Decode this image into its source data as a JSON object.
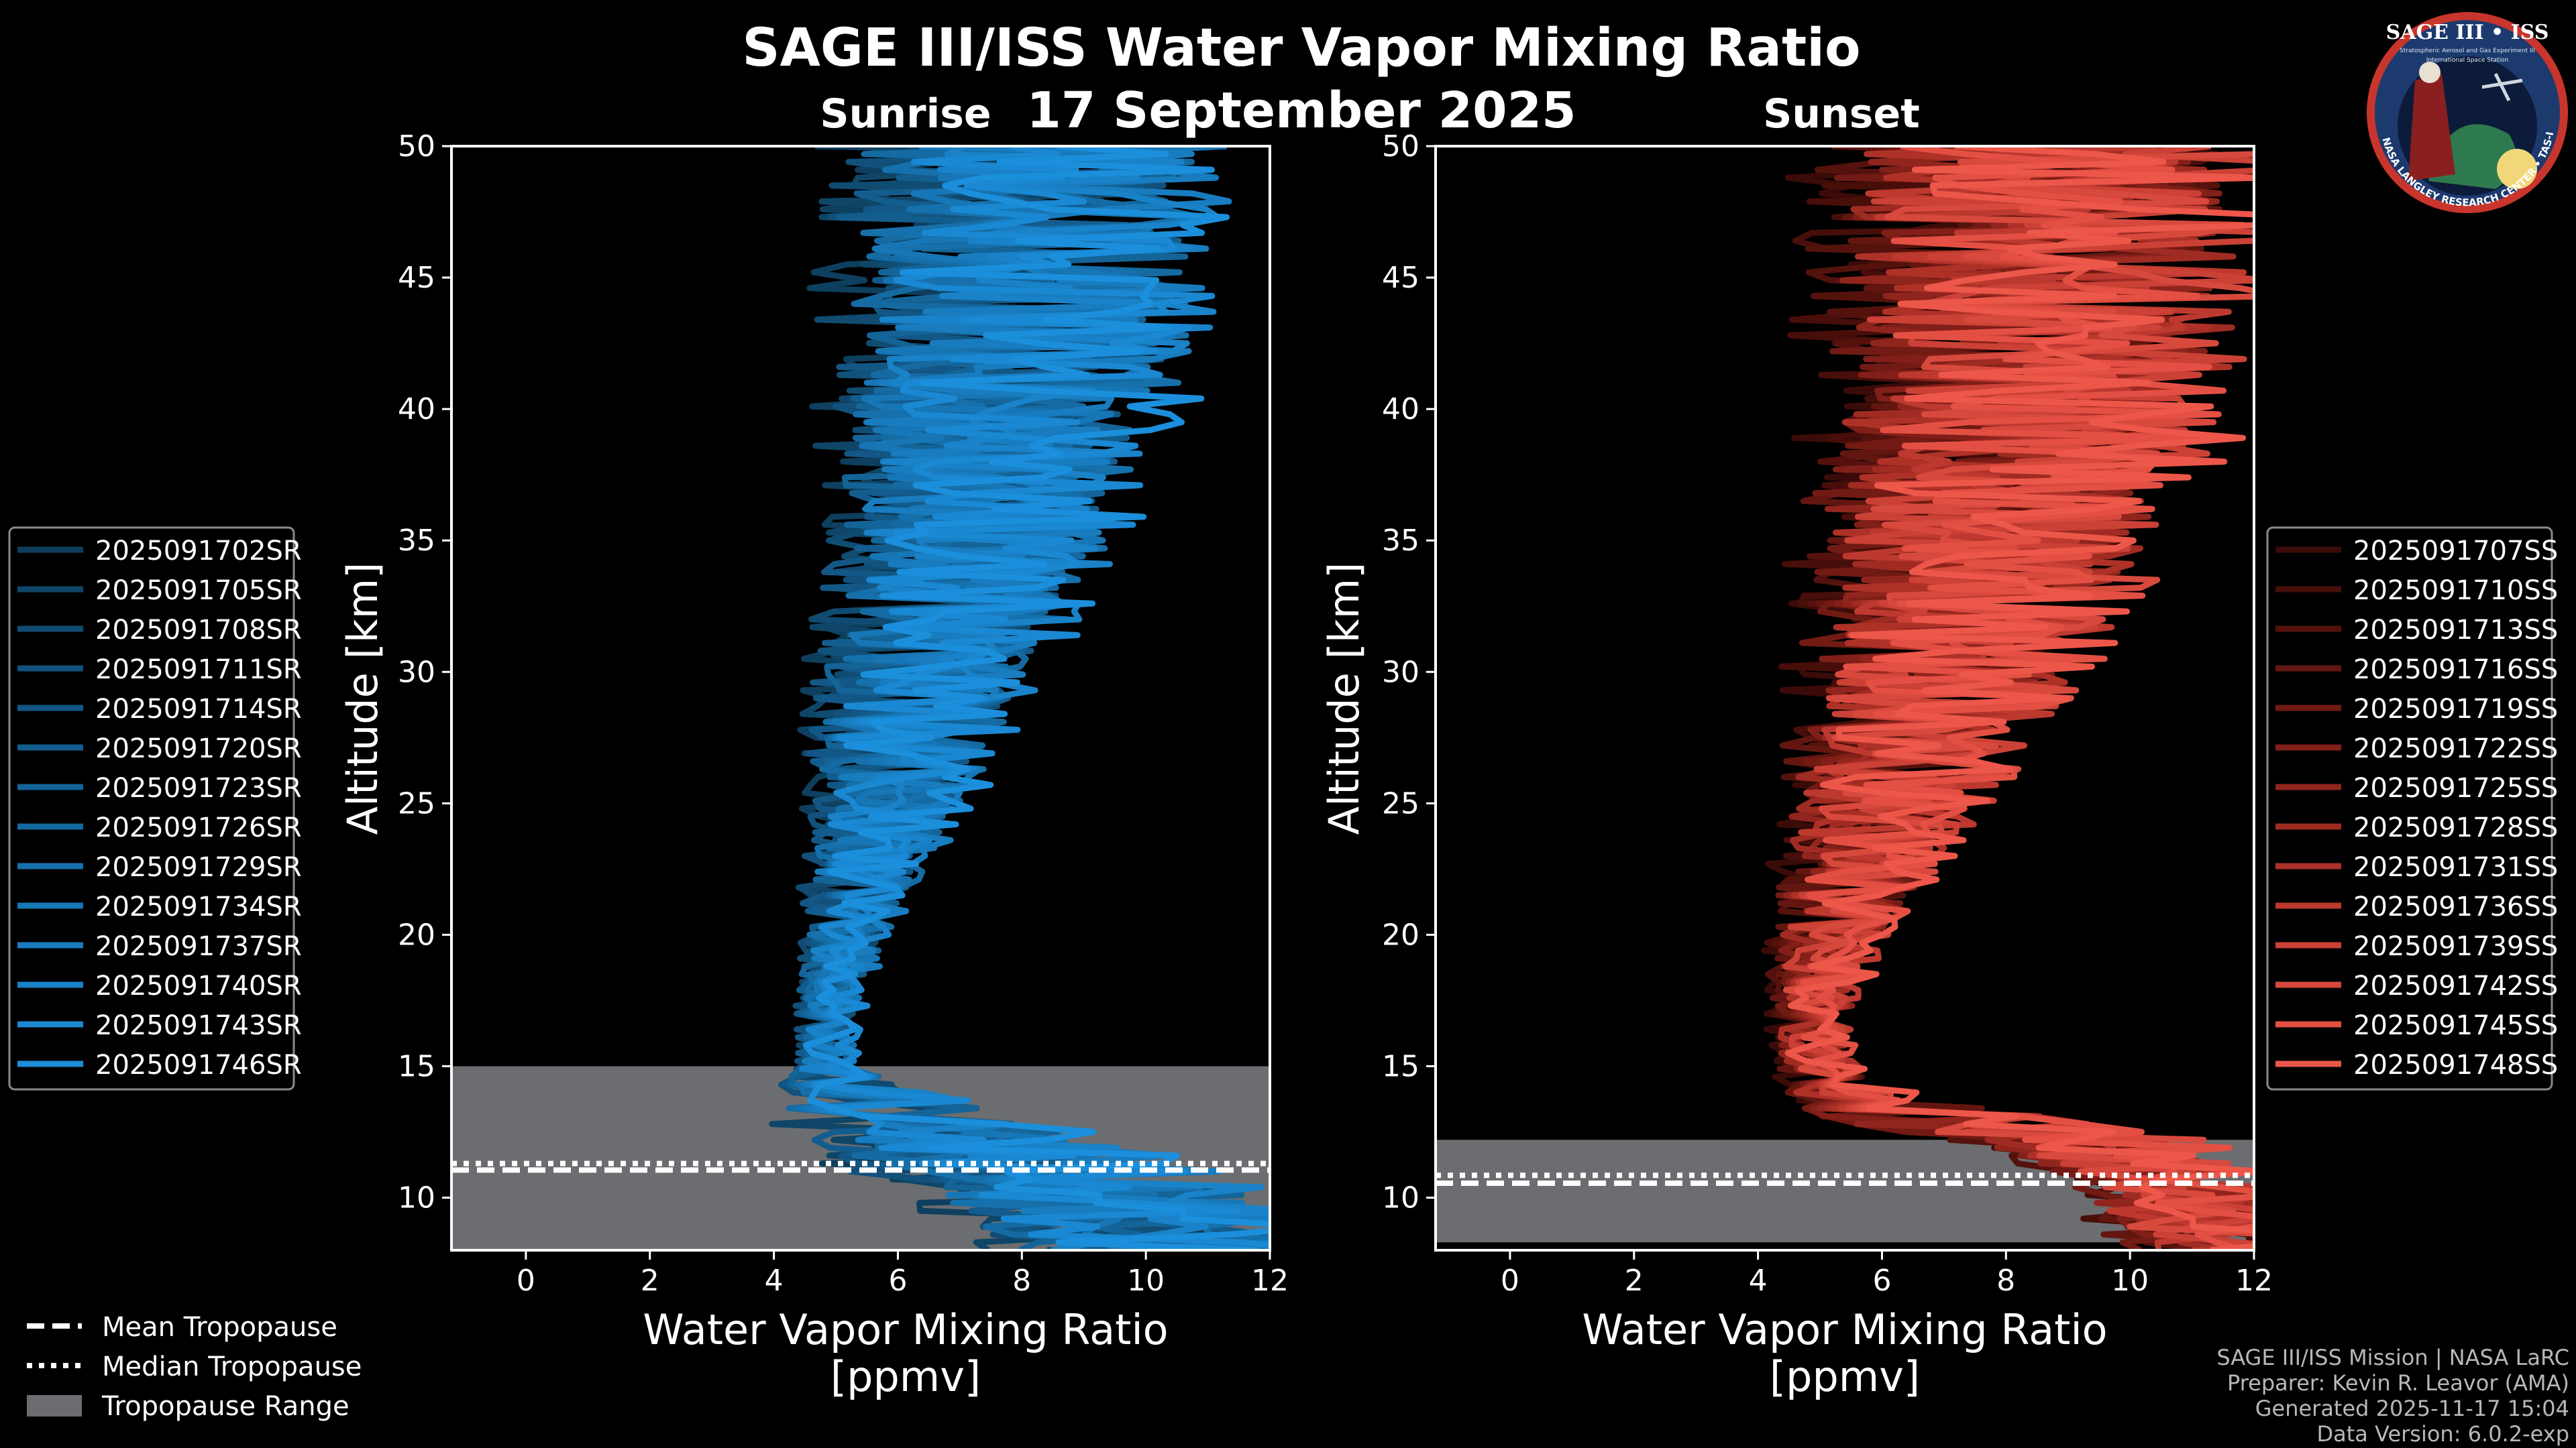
{
  "title": {
    "main": "SAGE III/ISS Water Vapor Mixing Ratio",
    "date": "17 September 2025",
    "left_subtitle": "Sunrise",
    "right_subtitle": "Sunset"
  },
  "logo": {
    "name": "SAGE III • ISS",
    "tagline": "Stratospheric Aerosol and Gas Experiment III",
    "partner": "International Space Station",
    "ring_text": "BALL • NASA LANGLEY RESEARCH CENTER • TAS-I • ESA"
  },
  "colors": {
    "background": "#000000",
    "sunrise": "#1a8fd6",
    "sunset": "#e8574a",
    "tropopause_fill": "#6b6d70"
  },
  "legend_keys": {
    "mean_tropopause": "Mean Tropopause",
    "median_tropopause": "Median Tropopause",
    "tropopause_range": "Tropopause Range"
  },
  "footer": {
    "line1": "SAGE III/ISS Mission | NASA LaRC",
    "line2": "Preparer: Kevin R. Leavor (AMA)",
    "line3": "Generated 2025-11-17 15:04",
    "line4": "Data Version: 6.0.2-exp"
  },
  "chart_data": [
    {
      "type": "line",
      "panel": "Sunrise",
      "xlabel": "Water Vapor Mixing Ratio",
      "xlabel_units": "[ppmv]",
      "ylabel": "Altitude [km]",
      "xlim": [
        -1.2,
        12
      ],
      "ylim": [
        8,
        50
      ],
      "xticks": [
        0,
        2,
        4,
        6,
        8,
        10,
        12
      ],
      "yticks": [
        10,
        15,
        20,
        25,
        30,
        35,
        40,
        45,
        50
      ],
      "profile_shape": {
        "altitude_km": [
          8,
          10,
          11,
          12,
          13,
          14,
          15,
          16,
          18,
          20,
          22,
          25,
          28,
          30,
          32,
          35,
          38,
          40,
          42,
          45,
          48,
          50
        ],
        "center_ppmv": [
          9.5,
          8.5,
          7.5,
          6.5,
          5.5,
          5.0,
          4.7,
          4.7,
          4.8,
          5.0,
          5.2,
          5.5,
          5.8,
          6.0,
          6.3,
          6.6,
          6.8,
          7.0,
          7.1,
          7.2,
          7.3,
          7.4
        ],
        "spread_ppmv": [
          3.5,
          3.5,
          3.5,
          3.0,
          2.5,
          1.5,
          0.6,
          0.6,
          0.7,
          0.9,
          1.2,
          1.6,
          2.0,
          2.2,
          2.5,
          2.8,
          3.0,
          3.5,
          3.5,
          3.7,
          3.8,
          3.8
        ]
      },
      "tropopause": {
        "mean_km": 11.05,
        "median_km": 11.3,
        "range_km": [
          8,
          15
        ]
      },
      "series": [
        {
          "name": "2025091702SR",
          "color": "#0e3f5e"
        },
        {
          "name": "2025091705SR",
          "color": "#0f4567"
        },
        {
          "name": "2025091708SR",
          "color": "#104b71"
        },
        {
          "name": "2025091711SR",
          "color": "#11517b"
        },
        {
          "name": "2025091714SR",
          "color": "#125785"
        },
        {
          "name": "2025091720SR",
          "color": "#135d8e"
        },
        {
          "name": "2025091723SR",
          "color": "#146498"
        },
        {
          "name": "2025091726SR",
          "color": "#156aa2"
        },
        {
          "name": "2025091729SR",
          "color": "#1670ab"
        },
        {
          "name": "2025091734SR",
          "color": "#1776b5"
        },
        {
          "name": "2025091737SR",
          "color": "#187cbf"
        },
        {
          "name": "2025091740SR",
          "color": "#1982c8"
        },
        {
          "name": "2025091743SR",
          "color": "#1a88d2"
        },
        {
          "name": "2025091746SR",
          "color": "#1b8fdb"
        }
      ]
    },
    {
      "type": "line",
      "panel": "Sunset",
      "xlabel": "Water Vapor Mixing Ratio",
      "xlabel_units": "[ppmv]",
      "ylabel": "Altitude [km]",
      "xlim": [
        -1.2,
        12
      ],
      "ylim": [
        8,
        50
      ],
      "xticks": [
        0,
        2,
        4,
        6,
        8,
        10,
        12
      ],
      "yticks": [
        10,
        15,
        20,
        25,
        30,
        35,
        40,
        45,
        50
      ],
      "profile_shape": {
        "altitude_km": [
          8,
          10,
          11,
          12,
          13,
          14,
          15,
          16,
          18,
          20,
          22,
          25,
          28,
          30,
          32,
          35,
          38,
          40,
          42,
          45,
          48,
          50
        ],
        "center_ppmv": [
          11.0,
          10.5,
          10.0,
          9.0,
          6.5,
          5.2,
          4.8,
          4.7,
          4.8,
          5.0,
          5.3,
          5.7,
          6.1,
          6.4,
          6.7,
          7.0,
          7.3,
          7.5,
          7.6,
          7.8,
          7.9,
          8.0
        ],
        "spread_ppmv": [
          2.0,
          2.0,
          2.2,
          2.5,
          2.5,
          1.2,
          0.8,
          0.8,
          0.9,
          1.2,
          1.5,
          2.0,
          2.5,
          2.8,
          3.2,
          3.5,
          3.8,
          4.0,
          4.2,
          4.4,
          4.5,
          4.5
        ]
      },
      "tropopause": {
        "mean_km": 10.55,
        "median_km": 10.85,
        "range_km": [
          8.3,
          12.2
        ]
      },
      "series": [
        {
          "name": "2025091707SS",
          "color": "#3a0b08"
        },
        {
          "name": "2025091710SS",
          "color": "#470e0a"
        },
        {
          "name": "2025091713SS",
          "color": "#55120d"
        },
        {
          "name": "2025091716SS",
          "color": "#631610"
        },
        {
          "name": "2025091719SS",
          "color": "#721a14"
        },
        {
          "name": "2025091722SS",
          "color": "#811f18"
        },
        {
          "name": "2025091725SS",
          "color": "#90251d"
        },
        {
          "name": "2025091728SS",
          "color": "#9f2b22"
        },
        {
          "name": "2025091731SS",
          "color": "#ae3128"
        },
        {
          "name": "2025091736SS",
          "color": "#bd392f"
        },
        {
          "name": "2025091739SS",
          "color": "#cb4136"
        },
        {
          "name": "2025091742SS",
          "color": "#d8493d"
        },
        {
          "name": "2025091745SS",
          "color": "#e35043"
        },
        {
          "name": "2025091748SS",
          "color": "#ec574a"
        }
      ]
    }
  ]
}
